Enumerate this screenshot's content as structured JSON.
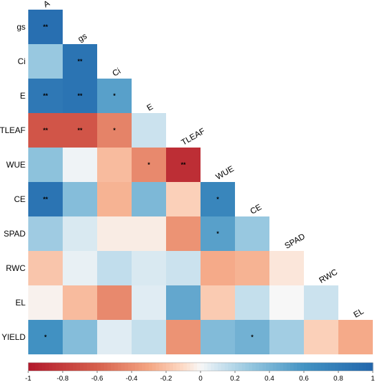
{
  "chart_data": {
    "type": "heatmap",
    "subtype": "lower-triangular correlation matrix",
    "col_labels": [
      "A",
      "gs",
      "Ci",
      "E",
      "TLEAF",
      "WUE",
      "CE",
      "SPAD",
      "RWC",
      "EL"
    ],
    "row_labels": [
      "gs",
      "Ci",
      "E",
      "TLEAF",
      "WUE",
      "CE",
      "SPAD",
      "RWC",
      "EL",
      "YIELD"
    ],
    "values": [
      [
        0.92
      ],
      [
        0.28,
        0.88
      ],
      [
        0.84,
        0.88,
        0.52
      ],
      [
        -0.66,
        -0.66,
        -0.45,
        0.12
      ],
      [
        0.32,
        0.02,
        -0.22,
        -0.42,
        -0.88
      ],
      [
        0.88,
        0.35,
        -0.25,
        0.38,
        -0.14,
        0.72
      ],
      [
        0.26,
        0.08,
        -0.04,
        -0.04,
        -0.38,
        0.52,
        0.28
      ],
      [
        -0.18,
        0.04,
        0.15,
        0.08,
        0.12,
        -0.28,
        -0.25,
        -0.06
      ],
      [
        -0.02,
        -0.22,
        -0.42,
        0.06,
        0.48,
        -0.16,
        0.14,
        0.0,
        0.12
      ],
      [
        0.62,
        0.35,
        0.06,
        0.14,
        -0.38,
        0.36,
        0.42,
        0.25,
        -0.14,
        -0.28
      ]
    ],
    "significance": [
      [
        "**"
      ],
      [
        "",
        "**"
      ],
      [
        "**",
        "**",
        "*"
      ],
      [
        "**",
        "**",
        "*",
        ""
      ],
      [
        "",
        "",
        "",
        "*",
        "**"
      ],
      [
        "**",
        "",
        "",
        "",
        "",
        "*"
      ],
      [
        "",
        "",
        "",
        "",
        "",
        "*",
        ""
      ],
      [
        "",
        "",
        "",
        "",
        "",
        "",
        "",
        ""
      ],
      [
        "",
        "",
        "",
        "",
        "",
        "",
        "",
        "",
        ""
      ],
      [
        "*",
        "",
        "",
        "",
        "",
        "",
        "*",
        "",
        "",
        ""
      ]
    ],
    "colorbar": {
      "range": [
        -1,
        1
      ],
      "ticks": [
        "-1",
        "-0.8",
        "-0.6",
        "-0.4",
        "-0.2",
        "0",
        "0.2",
        "0.4",
        "0.6",
        "0.8",
        "1"
      ],
      "low_color": "#b2182b",
      "mid_color": "#f7f7f7",
      "high_color": "#2166ac",
      "placement": "bottom"
    },
    "xlabel": "",
    "ylabel": "",
    "title": "",
    "grid": false
  }
}
